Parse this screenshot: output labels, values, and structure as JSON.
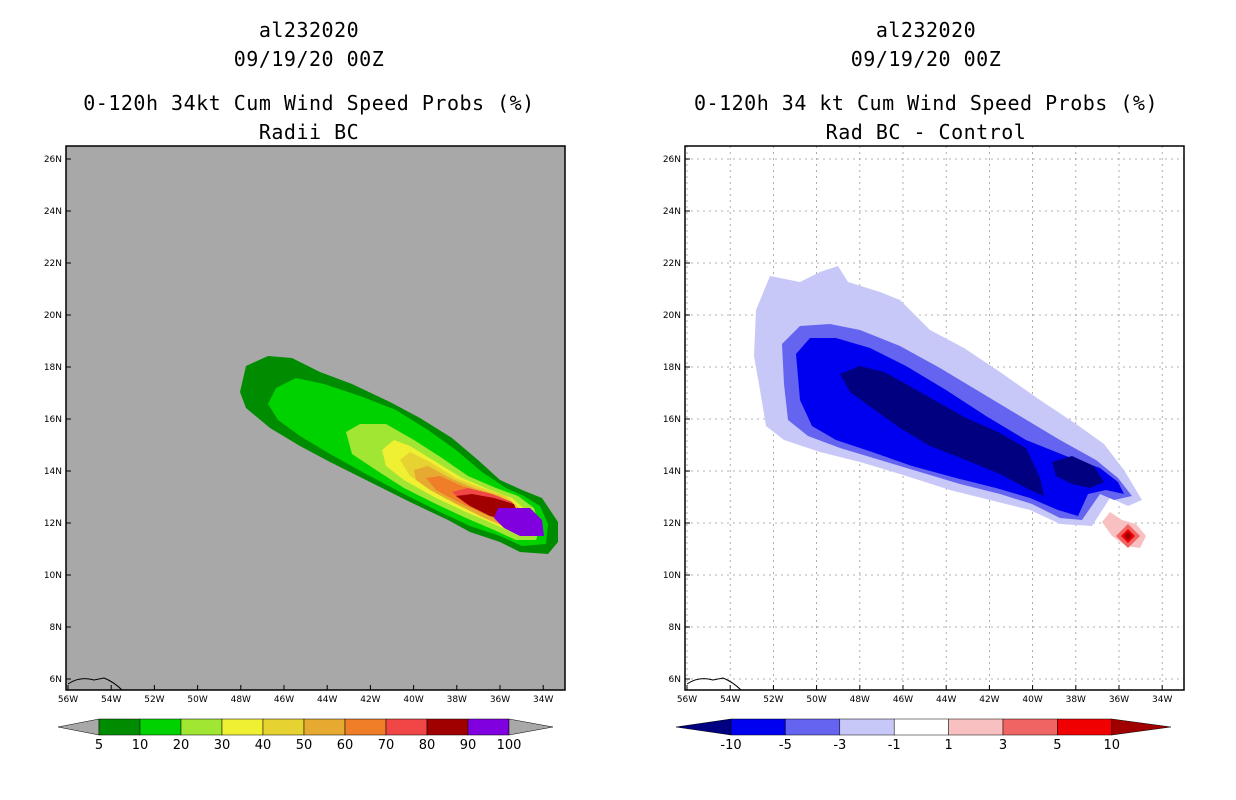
{
  "left_panel": {
    "title_lines": [
      "al232020",
      "09/19/20 00Z"
    ],
    "subtitle_lines": [
      "0-120h 34kt Cum Wind Speed Probs (%)",
      "Radii BC"
    ],
    "colorbar": {
      "labels": [
        "5",
        "10",
        "20",
        "30",
        "40",
        "50",
        "60",
        "70",
        "80",
        "90",
        "100"
      ],
      "colors": [
        "#008c00",
        "#00d200",
        "#a0e632",
        "#f0f032",
        "#e6d230",
        "#e6aa30",
        "#f07d28",
        "#f04646",
        "#a00000",
        "#8000e0"
      ],
      "end_color": "#a8a8a8"
    }
  },
  "right_panel": {
    "title_lines": [
      "al232020",
      "09/19/20 00Z"
    ],
    "subtitle_lines": [
      "0-120h 34 kt Cum Wind Speed Probs (%)",
      "Rad BC - Control"
    ],
    "colorbar": {
      "labels": [
        "-10",
        "-5",
        "-3",
        "-1",
        "1",
        "3",
        "5",
        "10"
      ],
      "colors": [
        "#000080",
        "#0000f0",
        "#6464f0",
        "#c8c8f8",
        "#ffffff",
        "#f8c0c0",
        "#f06464",
        "#f00000",
        "#a00000"
      ]
    }
  },
  "map": {
    "lat_labels": [
      "26N",
      "24N",
      "22N",
      "20N",
      "18N",
      "16N",
      "14N",
      "12N",
      "10N",
      "8N",
      "6N"
    ],
    "lon_labels": [
      "56W",
      "54W",
      "52W",
      "50W",
      "48W",
      "46W",
      "44W",
      "42W",
      "40W",
      "38W",
      "36W",
      "34W"
    ],
    "background_left": "#a8a8a8",
    "background_right": "#ffffff"
  }
}
